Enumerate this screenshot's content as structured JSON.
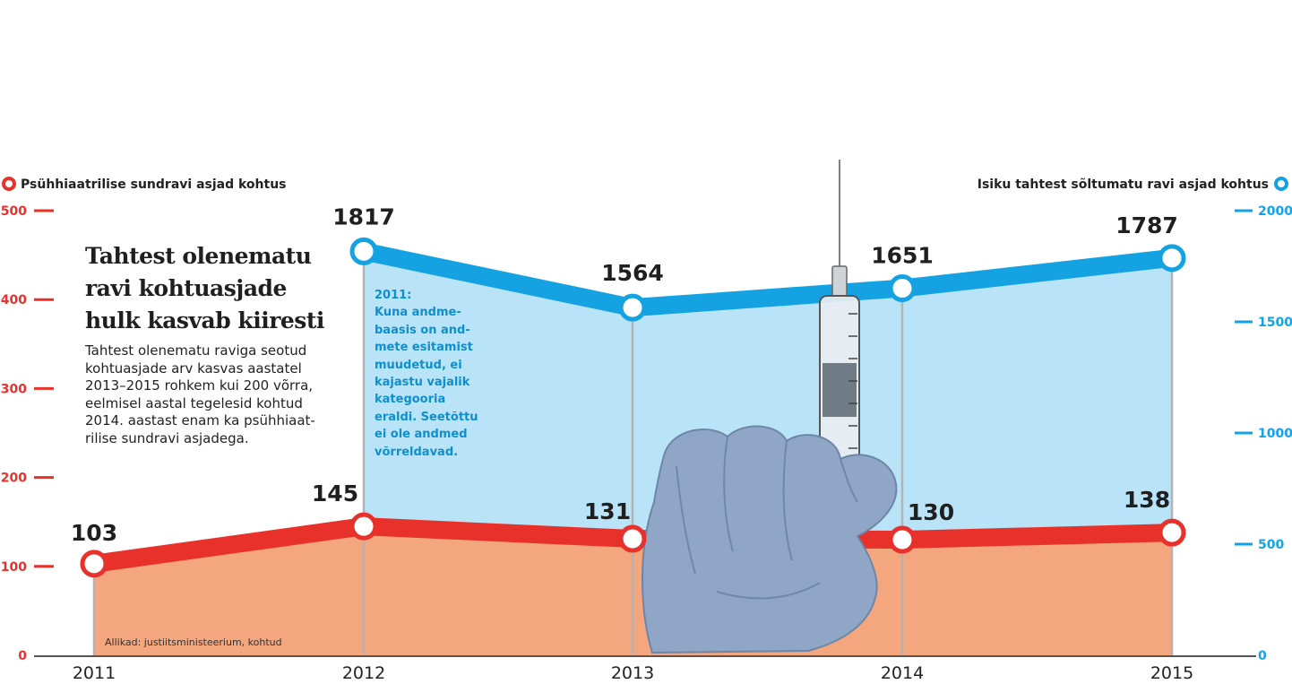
{
  "text": {
    "headline_line1": "Tahtest olenematu",
    "headline_line2": "ravi kohtuasjade",
    "headline_line3": "hulk kasvab kiiresti",
    "lead_lines": [
      "Tahtest olenematu raviga seotud",
      "kohtuasjade arv kasvas aastatel",
      "2013–2015 rohkem kui 200 võrra,",
      "eelmisel aastal tegelesid kohtud",
      "2014. aastast enam ka psühhiaat-",
      "rilise sundravi asjadega."
    ],
    "note_lines": [
      "2011:",
      "Kuna andme-",
      "baasis on and-",
      "mete esitamist",
      "muudetud, ei",
      "kajastu vajalik",
      "kategooria",
      "eraldi. Seetõttu",
      "ei ole andmed",
      "võrreldavad."
    ],
    "source": "Allikad: justiitsministeerium, kohtud"
  },
  "colors": {
    "red": "#e8312a",
    "red_fill": "#f4a67e",
    "blue": "#14a2e2",
    "blue_fill": "#b9e3f6",
    "grid": "#b3b3b3",
    "text": "#1f1f1f"
  },
  "chart_data": {
    "type": "line",
    "categories": [
      "2011",
      "2012",
      "2013",
      "2014",
      "2015"
    ],
    "series": [
      {
        "name": "Psühhiaatrilise sundravi asjad kohtus",
        "axis": "left",
        "color": "#e8312a",
        "values": [
          103,
          145,
          131,
          130,
          138
        ],
        "labels": [
          "103",
          "145",
          "131",
          "130",
          "138"
        ]
      },
      {
        "name": "Isiku tahtest sõltumatu ravi asjad kohtus",
        "axis": "right",
        "color": "#14a2e2",
        "values": [
          null,
          1817,
          1564,
          1651,
          1787
        ],
        "labels": [
          "",
          "1817",
          "1564",
          "1651",
          "1787"
        ]
      }
    ],
    "y_left": {
      "ticks": [
        "0",
        "100",
        "200",
        "300",
        "400",
        "500"
      ],
      "ylim": [
        0,
        500
      ]
    },
    "y_right": {
      "ticks": [
        "0",
        "500",
        "1000",
        "1500",
        "2000"
      ],
      "ylim": [
        0,
        2000
      ]
    },
    "area_fill": true,
    "legend_position": "top"
  },
  "image": {
    "icon": "gloved-hand-syringe-icon"
  }
}
